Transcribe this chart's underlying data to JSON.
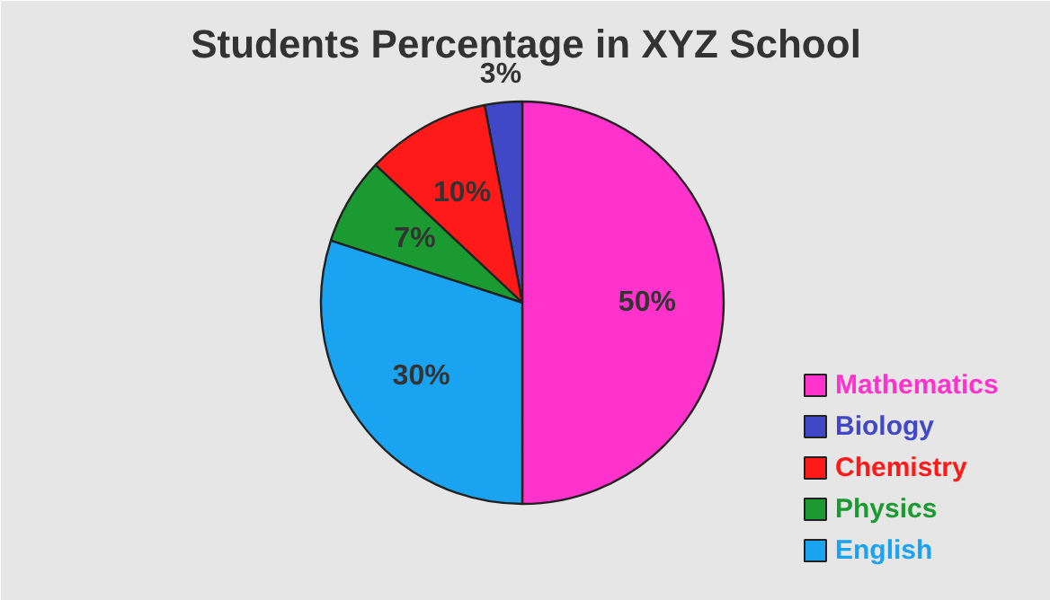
{
  "chart_data": {
    "type": "pie",
    "title": "Students Percentage in XYZ School",
    "categories": [
      "Mathematics",
      "Biology",
      "Chemistry",
      "Physics",
      "English"
    ],
    "values": [
      50,
      3,
      10,
      7,
      30
    ],
    "value_labels": [
      "50%",
      "3%",
      "10%",
      "7%",
      "30%"
    ],
    "colors": [
      "#ff33cc",
      "#4048c8",
      "#ff1a1a",
      "#1a9a30",
      "#1aa3f0"
    ],
    "legend": "bottom right"
  }
}
